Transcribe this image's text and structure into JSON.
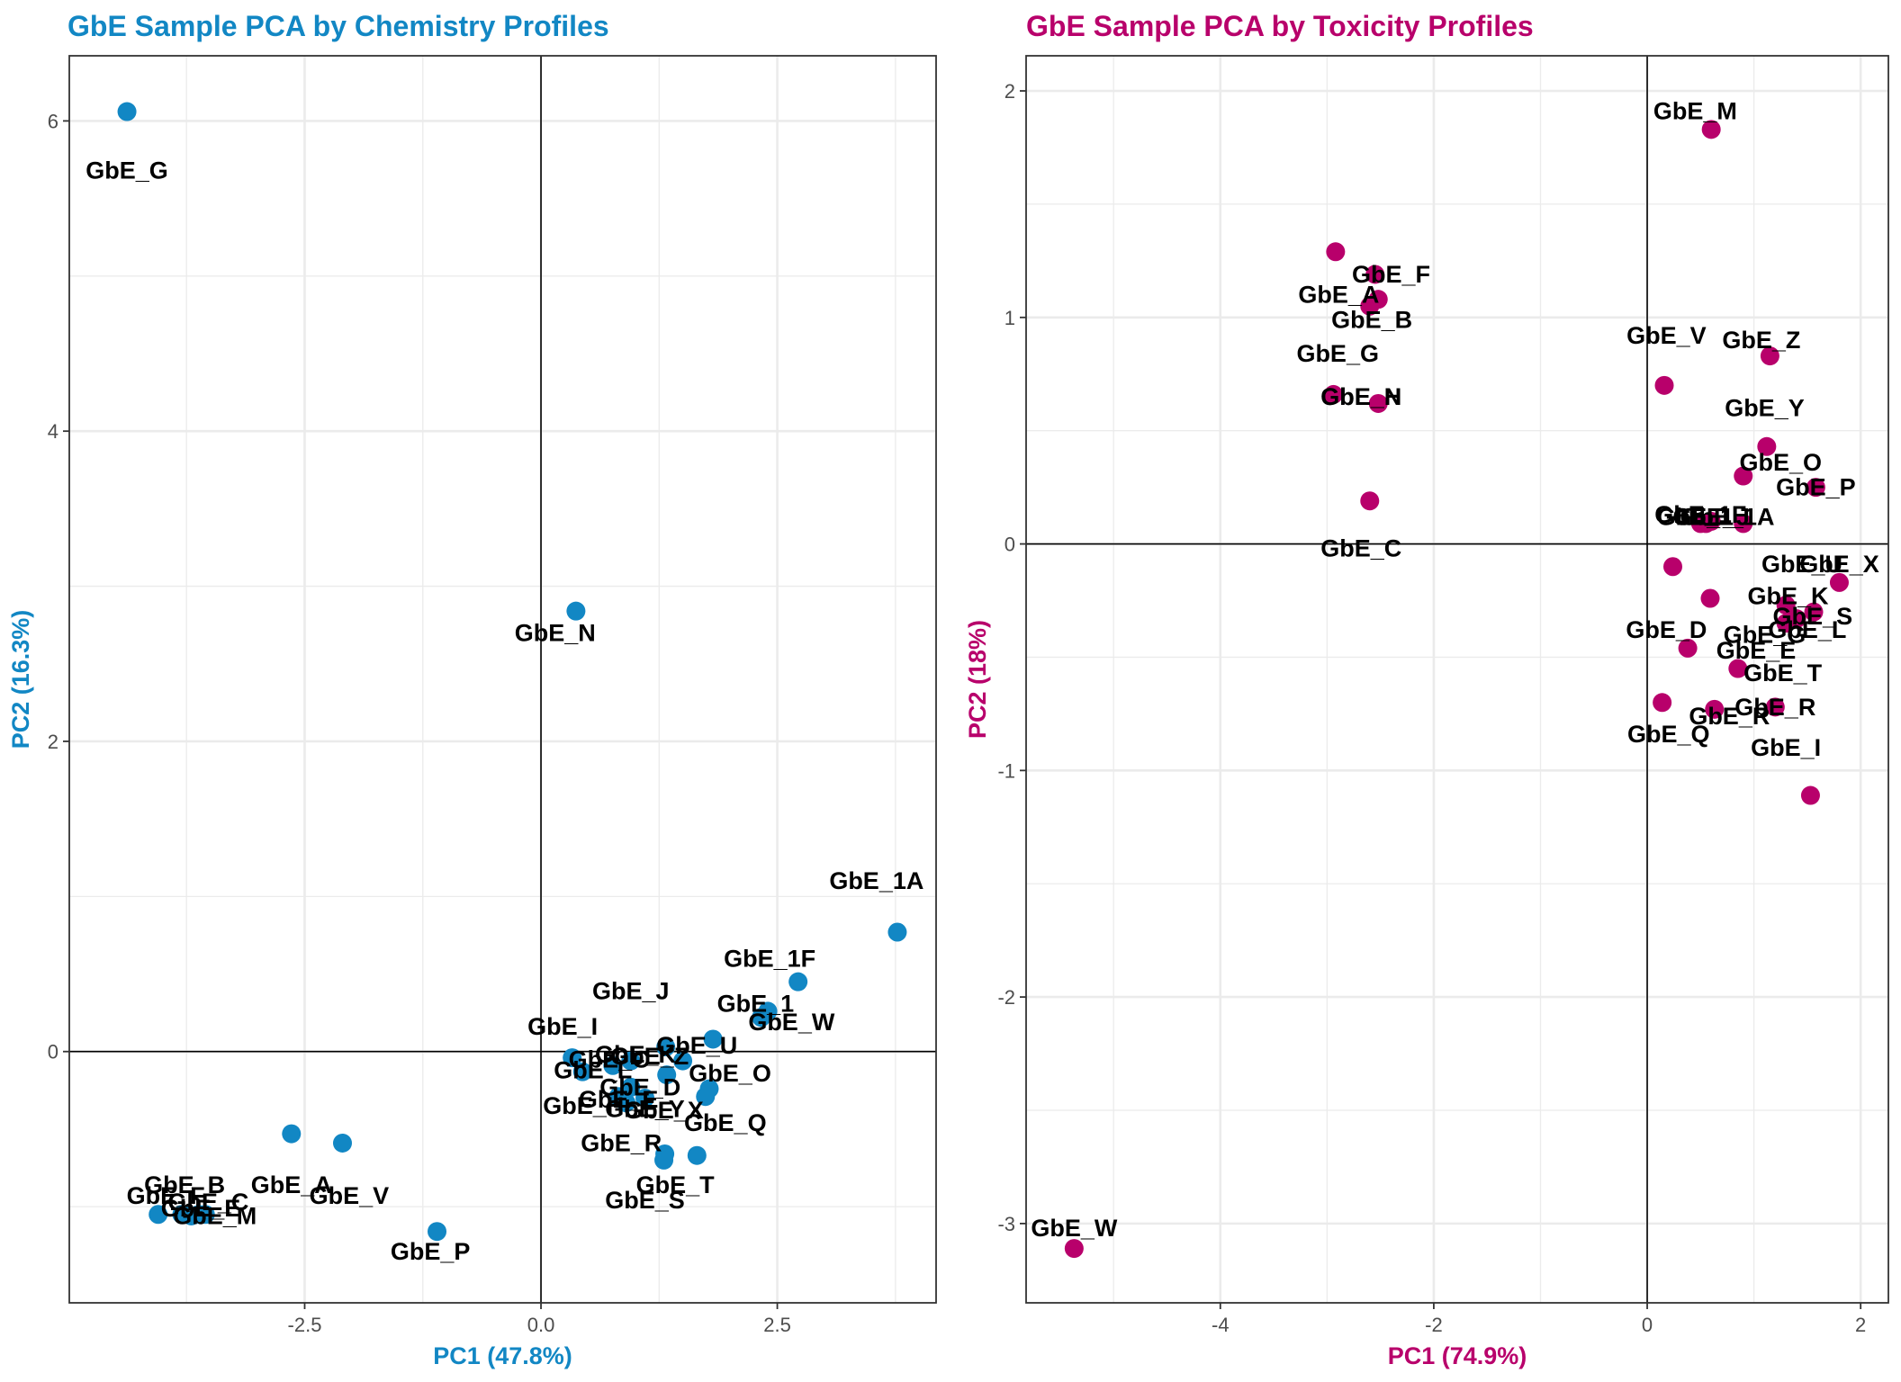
{
  "chart_data": [
    {
      "type": "scatter",
      "title": "GbE Sample PCA by Chemistry Profiles",
      "xlabel": "PC1 (47.8%)",
      "ylabel": "PC2 (16.3%)",
      "color": "#1287c4",
      "xlim": [
        -4.99,
        4.18
      ],
      "ylim": [
        -1.62,
        6.42
      ],
      "xticks": [
        -2.5,
        0.0,
        2.5
      ],
      "xtick_labels": [
        "-2.5",
        "0.0",
        "2.5"
      ],
      "yticks": [
        0,
        2,
        4,
        6
      ],
      "ytick_labels": [
        "0",
        "2",
        "4",
        "6"
      ],
      "grid": true,
      "points": [
        {
          "label": "GbE_G",
          "x": -4.38,
          "y": 6.06,
          "lx": -4.38,
          "ly": 5.68
        },
        {
          "label": "GbE_N",
          "x": 0.37,
          "y": 2.84,
          "lx": 0.15,
          "ly": 2.7
        },
        {
          "label": "GbE_1A",
          "x": 3.77,
          "y": 0.77,
          "lx": 3.55,
          "ly": 1.1
        },
        {
          "label": "GbE_1F",
          "x": 2.72,
          "y": 0.45,
          "lx": 2.42,
          "ly": 0.6
        },
        {
          "label": "GbE_1",
          "x": 2.4,
          "y": 0.26,
          "lx": 2.27,
          "ly": 0.31
        },
        {
          "label": "GbE_W",
          "x": 2.33,
          "y": 0.22,
          "lx": 2.65,
          "ly": 0.19
        },
        {
          "label": "GbE_J",
          "x": 1.32,
          "y": 0.03,
          "lx": 0.95,
          "ly": 0.39
        },
        {
          "label": "GbE_I",
          "x": 0.33,
          "y": -0.04,
          "lx": 0.23,
          "ly": 0.16
        },
        {
          "label": "GbE_U",
          "x": 1.82,
          "y": 0.08,
          "lx": 1.65,
          "ly": 0.04
        },
        {
          "label": "GbE_K",
          "x": 0.95,
          "y": -0.06,
          "lx": 1.0,
          "ly": -0.02
        },
        {
          "label": "GbE_Z",
          "x": 1.5,
          "y": -0.06,
          "lx": 1.15,
          "ly": -0.03
        },
        {
          "label": "GbE_C",
          "x": 0.44,
          "y": -0.13,
          "lx": 0.72,
          "ly": -0.05
        },
        {
          "label": "GbE_L",
          "x": 0.76,
          "y": -0.09,
          "lx": 0.55,
          "ly": -0.12
        },
        {
          "label": "GbE_D",
          "x": 1.33,
          "y": -0.15,
          "lx": 1.05,
          "ly": -0.23
        },
        {
          "label": "GbE_O",
          "x": 1.78,
          "y": -0.24,
          "lx": 2.0,
          "ly": -0.14
        },
        {
          "label": "GbE_H",
          "x": 0.82,
          "y": -0.29,
          "lx": 0.45,
          "ly": -0.35
        },
        {
          "label": "GbE_E",
          "x": 0.9,
          "y": -0.33,
          "lx": 0.82,
          "ly": -0.31
        },
        {
          "label": "GbE_Y",
          "x": 0.95,
          "y": -0.23,
          "lx": 1.1,
          "ly": -0.37
        },
        {
          "label": "GbE_X",
          "x": 1.1,
          "y": -0.3,
          "lx": 1.3,
          "ly": -0.38
        },
        {
          "label": "GbE_Q",
          "x": 1.74,
          "y": -0.29,
          "lx": 1.95,
          "ly": -0.46
        },
        {
          "label": "GbE_R",
          "x": 1.31,
          "y": -0.66,
          "lx": 0.85,
          "ly": -0.59
        },
        {
          "label": "GbE_T",
          "x": 1.65,
          "y": -0.67,
          "lx": 1.42,
          "ly": -0.86
        },
        {
          "label": "GbE_S",
          "x": 1.3,
          "y": -0.7,
          "lx": 1.1,
          "ly": -0.96
        },
        {
          "label": "GbE_A",
          "x": -2.64,
          "y": -0.53,
          "lx": -2.64,
          "ly": -0.86
        },
        {
          "label": "GbE_V",
          "x": -2.1,
          "y": -0.59,
          "lx": -2.03,
          "ly": -0.93
        },
        {
          "label": "GbE_P",
          "x": -1.1,
          "y": -1.16,
          "lx": -1.17,
          "ly": -1.29
        },
        {
          "label": "GbE_B",
          "x": -4.05,
          "y": -1.05,
          "lx": -3.77,
          "ly": -0.86
        },
        {
          "label": "GbE_F",
          "x": -3.8,
          "y": -1.05,
          "lx": -3.97,
          "ly": -0.93
        },
        {
          "label": "GbE_C2",
          "x": -3.7,
          "y": -1.06,
          "lx": -3.52,
          "ly": -0.97
        },
        {
          "label": "GbE_E2",
          "x": -3.62,
          "y": -1.05,
          "lx": -3.6,
          "ly": -1.01
        },
        {
          "label": "GbE_M",
          "x": -3.55,
          "y": -1.05,
          "lx": -3.45,
          "ly": -1.06
        }
      ]
    },
    {
      "type": "scatter",
      "title": "GbE Sample PCA by Toxicity Profiles",
      "xlabel": "PC1 (74.9%)",
      "ylabel": "PC2 (18%)",
      "color": "#b8006b",
      "xlim": [
        -5.82,
        2.26
      ],
      "ylim": [
        -3.35,
        2.155
      ],
      "xticks": [
        -4,
        -2,
        0,
        2
      ],
      "xtick_labels": [
        "-4",
        "-2",
        "0",
        "2"
      ],
      "yticks": [
        -3,
        -2,
        -1,
        0,
        1,
        2
      ],
      "ytick_labels": [
        "-3",
        "-2",
        "-1",
        "0",
        "1",
        "2"
      ],
      "grid": true,
      "points": [
        {
          "label": "GbE_M",
          "x": 0.6,
          "y": 1.83,
          "lx": 0.45,
          "ly": 1.91
        },
        {
          "label": "GbE_F",
          "x": -2.55,
          "y": 1.19,
          "lx": -2.4,
          "ly": 1.19
        },
        {
          "label": "GbE_A",
          "x": -2.92,
          "y": 1.29,
          "lx": -2.89,
          "ly": 1.1
        },
        {
          "label": "GbE_B",
          "x": -2.52,
          "y": 1.08,
          "lx": -2.58,
          "ly": 0.99
        },
        {
          "label": "GbE_G",
          "x": -2.6,
          "y": 1.05,
          "lx": -2.9,
          "ly": 0.84
        },
        {
          "label": "GbE_H",
          "x": -2.52,
          "y": 0.62,
          "lx": -2.68,
          "ly": 0.65
        },
        {
          "label": "GbE_N",
          "x": -2.94,
          "y": 0.66,
          "lx": -2.68,
          "ly": 0.65
        },
        {
          "label": "GbE_C",
          "x": -2.6,
          "y": 0.19,
          "lx": -2.68,
          "ly": -0.02
        },
        {
          "label": "GbE_V",
          "x": 0.16,
          "y": 0.7,
          "lx": 0.18,
          "ly": 0.92
        },
        {
          "label": "GbE_Z",
          "x": 1.15,
          "y": 0.83,
          "lx": 1.07,
          "ly": 0.9
        },
        {
          "label": "GbE_Y",
          "x": 1.12,
          "y": 0.43,
          "lx": 1.1,
          "ly": 0.6
        },
        {
          "label": "GbE_O",
          "x": 0.9,
          "y": 0.3,
          "lx": 1.25,
          "ly": 0.36
        },
        {
          "label": "GbE_P",
          "x": 1.58,
          "y": 0.25,
          "lx": 1.58,
          "ly": 0.25
        },
        {
          "label": "GbE_1A",
          "x": 0.9,
          "y": 0.09,
          "lx": 0.75,
          "ly": 0.12
        },
        {
          "label": "GbE_1",
          "x": 0.5,
          "y": 0.09,
          "lx": 0.45,
          "ly": 0.12
        },
        {
          "label": "GbE_1F",
          "x": 0.6,
          "y": 0.1,
          "lx": 0.5,
          "ly": 0.13
        },
        {
          "label": "GbE_J",
          "x": 0.55,
          "y": 0.09,
          "lx": 0.6,
          "ly": 0.12
        },
        {
          "label": "GbE_U",
          "x": 0.24,
          "y": -0.1,
          "lx": 1.45,
          "ly": -0.09
        },
        {
          "label": "GbE_X",
          "x": 1.8,
          "y": -0.17,
          "lx": 1.8,
          "ly": -0.09
        },
        {
          "label": "GbE_K",
          "x": 0.59,
          "y": -0.24,
          "lx": 1.32,
          "ly": -0.23
        },
        {
          "label": "GbE_S",
          "x": 1.56,
          "y": -0.3,
          "lx": 1.55,
          "ly": -0.32
        },
        {
          "label": "GbE_L",
          "x": 1.3,
          "y": -0.27,
          "lx": 1.5,
          "ly": -0.38
        },
        {
          "label": "GbE_G2",
          "x": 1.4,
          "y": -0.33,
          "lx": 1.1,
          "ly": -0.4
        },
        {
          "label": "GbE_D",
          "x": 0.38,
          "y": -0.46,
          "lx": 0.18,
          "ly": -0.38
        },
        {
          "label": "GbE_E",
          "x": 1.3,
          "y": -0.35,
          "lx": 1.02,
          "ly": -0.47
        },
        {
          "label": "GbE_T",
          "x": 0.85,
          "y": -0.55,
          "lx": 1.27,
          "ly": -0.57
        },
        {
          "label": "GbE_Q",
          "x": 0.14,
          "y": -0.7,
          "lx": 0.2,
          "ly": -0.84
        },
        {
          "label": "GbE_R",
          "x": 0.63,
          "y": -0.73,
          "lx": 0.77,
          "ly": -0.76
        },
        {
          "label": "GbE_R2",
          "x": 1.2,
          "y": -0.72,
          "lx": 1.2,
          "ly": -0.72
        },
        {
          "label": "GbE_I",
          "x": 1.53,
          "y": -1.11,
          "lx": 1.3,
          "ly": -0.9
        },
        {
          "label": "GbE_W",
          "x": -5.37,
          "y": -3.11,
          "lx": -5.37,
          "ly": -3.02
        }
      ]
    }
  ]
}
